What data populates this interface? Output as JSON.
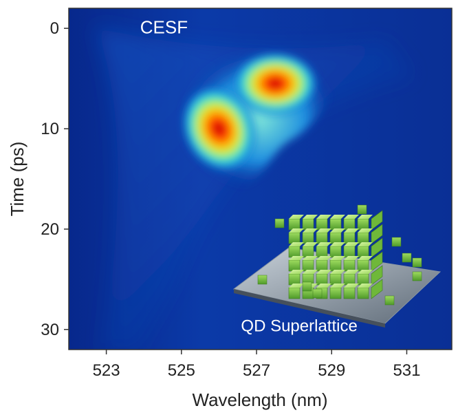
{
  "chart_data": {
    "type": "heatmap",
    "title": "",
    "xlabel": "Wavelength (nm)",
    "ylabel": "Time (ps)",
    "xlim": [
      522,
      532.2
    ],
    "ylim": [
      -2,
      32
    ],
    "y_inverted": true,
    "x_ticks": [
      523,
      525,
      527,
      529,
      531
    ],
    "y_ticks": [
      0,
      10,
      20,
      30
    ],
    "x_tick_labels": [
      "523",
      "525",
      "527",
      "529",
      "531"
    ],
    "y_tick_labels": [
      "0",
      "10",
      "20",
      "30"
    ],
    "colormap": "jet",
    "background_color": "#0a2d96",
    "annotations": [
      {
        "text": "CESF",
        "x": 523.9,
        "y": 0.5
      },
      {
        "text": "QD Superlattice",
        "x": 528.6,
        "y": 30.2
      }
    ],
    "peaks": [
      {
        "wavelength": 527.5,
        "time": 5.5,
        "intensity": 1.0
      },
      {
        "wavelength": 526.0,
        "time": 10.0,
        "intensity": 1.0
      }
    ],
    "inset": {
      "description_icon": "quantum-dot-superlattice-cube",
      "color": "#8fd14f"
    }
  }
}
